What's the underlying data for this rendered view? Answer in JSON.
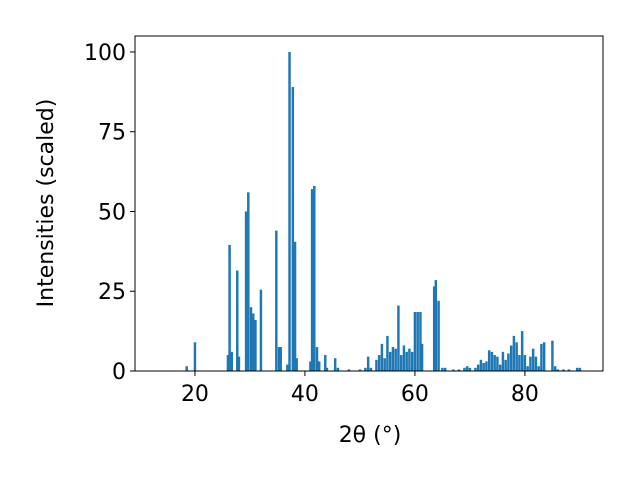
{
  "chart_data": {
    "type": "bar",
    "xlabel": "2θ (°)",
    "ylabel": "Intensities (scaled)",
    "color": "#1f77b4",
    "x": [
      18.5,
      20,
      26,
      26.3,
      26.7,
      27.7,
      28,
      29.3,
      29.7,
      30.2,
      30.6,
      31,
      32,
      34.8,
      35.3,
      35.6,
      36.8,
      37.2,
      37.8,
      38.2,
      38.5,
      41,
      41.3,
      41.7,
      42.2,
      42.6,
      43.7,
      44,
      45.5,
      46,
      48,
      50,
      51,
      51.5,
      52,
      53,
      53.5,
      54,
      54.5,
      55,
      55.5,
      56,
      56.5,
      57,
      57.5,
      58,
      58.5,
      59,
      59.5,
      60,
      60.5,
      61,
      61.3,
      63.5,
      63.8,
      64.3,
      65,
      65.5,
      67,
      68,
      69,
      69.5,
      70,
      71,
      71.5,
      72,
      72.5,
      73,
      73.5,
      74,
      74.5,
      75,
      75.5,
      76,
      76.5,
      77,
      77.5,
      78,
      78.5,
      79,
      79.5,
      80,
      80.5,
      81,
      81.5,
      82,
      82.5,
      83,
      83.5,
      85,
      85.5,
      86,
      87,
      88,
      89.5,
      90
    ],
    "values": [
      1.5,
      9,
      5,
      39.5,
      6,
      31.5,
      4.5,
      50,
      56,
      20,
      18,
      16,
      25.5,
      44,
      7.5,
      7.5,
      2,
      100,
      89,
      40.5,
      4,
      3,
      57,
      58,
      7.5,
      3,
      5,
      1,
      4,
      1,
      0.5,
      0.5,
      1,
      4.5,
      1,
      3.5,
      5,
      8.5,
      4,
      11,
      6,
      7.5,
      7,
      20.5,
      5,
      8,
      6,
      7,
      6,
      18.5,
      18.5,
      18.5,
      8.5,
      26.5,
      28.5,
      22,
      1,
      1,
      0.5,
      0.5,
      1,
      1.5,
      1,
      1,
      2,
      3.5,
      2.5,
      3,
      6.5,
      6,
      5,
      4.5,
      2,
      6,
      3.5,
      5.5,
      8,
      11,
      9,
      5,
      12.5,
      5,
      1.5,
      4.5,
      7,
      4.5,
      1.5,
      8.5,
      9,
      9.5,
      1.5,
      0.5,
      0.5,
      0.5,
      1,
      1
    ],
    "xlim": [
      9.1,
      94.2
    ],
    "xticks": [
      20,
      40,
      60,
      80
    ],
    "ylim": [
      0,
      105
    ],
    "yticks": [
      0,
      25,
      50,
      75,
      100
    ],
    "grid": false
  }
}
